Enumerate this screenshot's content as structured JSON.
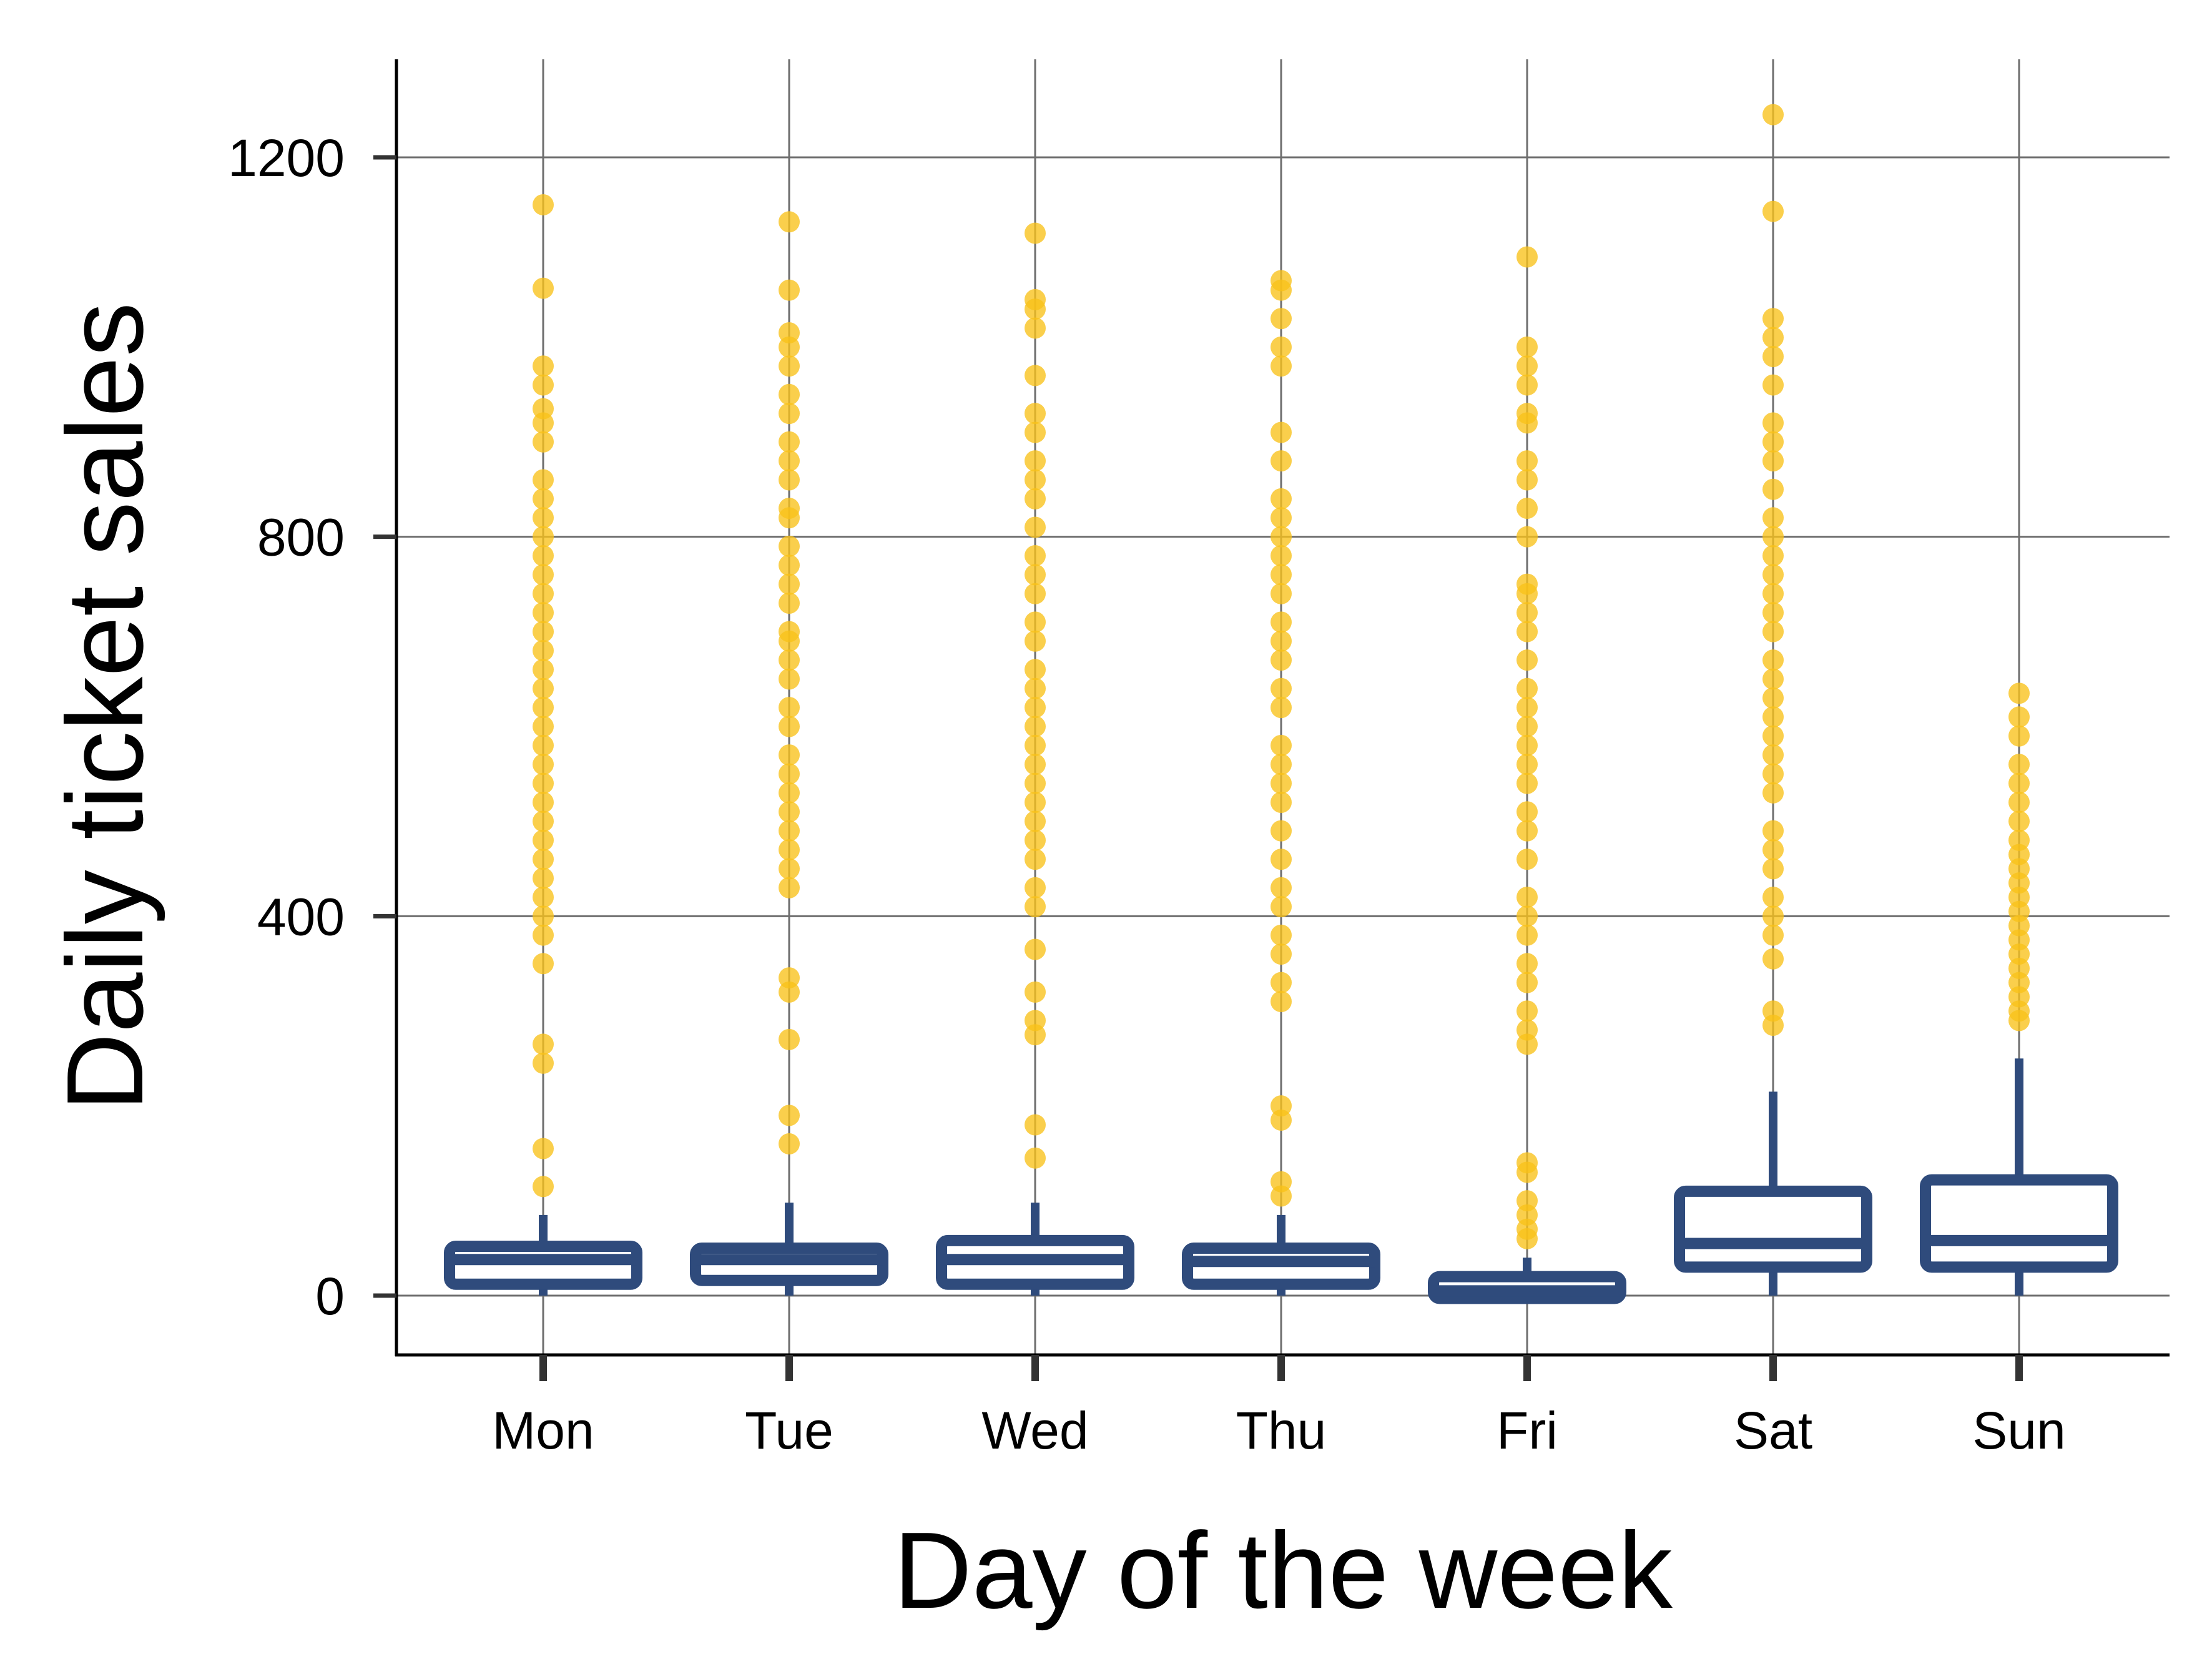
{
  "chart_data": {
    "type": "box",
    "xlabel": "Day of the week",
    "ylabel": "Daily ticket sales",
    "categories": [
      "Mon",
      "Tue",
      "Wed",
      "Thu",
      "Fri",
      "Sat",
      "Sun"
    ],
    "ylim": [
      -60,
      1305
    ],
    "yticks": [
      0,
      400,
      800,
      1200
    ],
    "grid": true,
    "colors": {
      "box": "#2f4b7c",
      "outlier": "#f9c21a",
      "grid": "#6e6e6e",
      "axis": "#000000"
    },
    "boxes": [
      {
        "category": "Mon",
        "whisker_low": 0,
        "q1": 12,
        "median": 38,
        "q3": 52,
        "whisker_high": 85,
        "outliers": [
          1150,
          1062,
          980,
          960,
          935,
          920,
          900,
          860,
          840,
          820,
          800,
          780,
          760,
          740,
          720,
          700,
          680,
          660,
          640,
          620,
          600,
          580,
          560,
          540,
          520,
          500,
          480,
          460,
          440,
          420,
          400,
          380,
          350,
          265,
          245,
          155,
          115
        ]
      },
      {
        "category": "Tue",
        "whisker_low": 0,
        "q1": 16,
        "median": 38,
        "q3": 50,
        "whisker_high": 98,
        "outliers": [
          1132,
          1060,
          1015,
          1000,
          980,
          950,
          930,
          900,
          880,
          860,
          830,
          820,
          790,
          770,
          750,
          730,
          700,
          690,
          670,
          650,
          620,
          600,
          570,
          550,
          530,
          510,
          490,
          470,
          450,
          430,
          335,
          320,
          270,
          190,
          160
        ]
      },
      {
        "category": "Wed",
        "whisker_low": 0,
        "q1": 12,
        "median": 38,
        "q3": 58,
        "whisker_high": 98,
        "outliers": [
          1120,
          1050,
          1040,
          1020,
          970,
          930,
          910,
          880,
          860,
          840,
          810,
          780,
          760,
          740,
          710,
          690,
          660,
          640,
          620,
          600,
          580,
          560,
          540,
          520,
          500,
          480,
          460,
          430,
          410,
          365,
          320,
          290,
          275,
          180,
          145
        ]
      },
      {
        "category": "Thu",
        "whisker_low": 0,
        "q1": 12,
        "median": 36,
        "q3": 50,
        "whisker_high": 85,
        "outliers": [
          1070,
          1060,
          1030,
          1000,
          980,
          910,
          880,
          840,
          820,
          800,
          780,
          760,
          740,
          710,
          690,
          670,
          640,
          620,
          580,
          560,
          540,
          520,
          490,
          460,
          430,
          410,
          380,
          360,
          330,
          310,
          200,
          185,
          120,
          105
        ]
      },
      {
        "category": "Fri",
        "whisker_low": -5,
        "q1": -3,
        "median": 5,
        "q3": 20,
        "whisker_high": 40,
        "outliers": [
          1095,
          1000,
          980,
          960,
          930,
          920,
          880,
          860,
          830,
          800,
          750,
          740,
          720,
          700,
          670,
          640,
          620,
          600,
          580,
          560,
          540,
          510,
          490,
          460,
          420,
          400,
          380,
          350,
          330,
          300,
          280,
          265,
          140,
          130,
          100,
          85,
          70,
          60
        ]
      },
      {
        "category": "Sat",
        "whisker_low": 0,
        "q1": 30,
        "median": 55,
        "q3": 110,
        "whisker_high": 215,
        "outliers": [
          1245,
          1143,
          1030,
          1010,
          990,
          960,
          920,
          900,
          880,
          850,
          820,
          800,
          780,
          760,
          740,
          720,
          700,
          670,
          650,
          630,
          610,
          590,
          570,
          550,
          530,
          490,
          470,
          450,
          420,
          400,
          380,
          355,
          300,
          285
        ]
      },
      {
        "category": "Sun",
        "whisker_low": 0,
        "q1": 30,
        "median": 58,
        "q3": 122,
        "whisker_high": 250,
        "outliers": [
          635,
          610,
          590,
          560,
          540,
          520,
          500,
          480,
          465,
          450,
          435,
          420,
          405,
          390,
          375,
          360,
          345,
          330,
          315,
          300,
          290
        ]
      }
    ]
  }
}
